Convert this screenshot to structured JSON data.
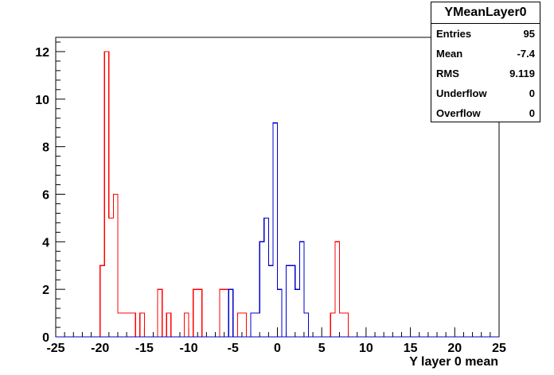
{
  "chart_data": {
    "type": "histogram",
    "title": "",
    "xlabel": "Y layer 0 mean",
    "ylabel": "",
    "xlim": [
      -25,
      25
    ],
    "ylim": [
      0,
      12.6
    ],
    "xticks": [
      "-25",
      "-20",
      "-15",
      "-10",
      "-5",
      "0",
      "5",
      "10",
      "15",
      "20",
      "25"
    ],
    "yticks": [
      "0",
      "2",
      "4",
      "6",
      "8",
      "10",
      "12"
    ],
    "bin_edges": [
      -25,
      -24.5,
      -24,
      -23.5,
      -23,
      -22.5,
      -22,
      -21.5,
      -21,
      -20.5,
      -20,
      -19.5,
      -19,
      -18.5,
      -18,
      -17.5,
      -17,
      -16.5,
      -16,
      -15.5,
      -15,
      -14.5,
      -14,
      -13.5,
      -13,
      -12.5,
      -12,
      -11.5,
      -11,
      -10.5,
      -10,
      -9.5,
      -9,
      -8.5,
      -8,
      -7.5,
      -7,
      -6.5,
      -6,
      -5.5,
      -5,
      -4.5,
      -4,
      -3.5,
      -3,
      -2.5,
      -2,
      -1.5,
      -1,
      -0.5,
      0,
      0.5,
      1,
      1.5,
      2,
      2.5,
      3,
      3.5,
      4,
      4.5,
      5,
      5.5,
      6,
      6.5,
      7,
      7.5,
      8,
      8.5,
      9,
      9.5,
      10,
      10.5,
      11,
      11.5,
      12,
      12.5,
      13,
      13.5,
      14,
      14.5,
      15,
      15.5,
      16,
      16.5,
      17,
      17.5,
      18,
      18.5,
      19,
      19.5,
      20,
      20.5,
      21,
      21.5,
      22,
      22.5,
      23,
      23.5,
      24,
      24.5,
      25
    ],
    "series": [
      {
        "color": "#ff0000",
        "values": [
          0,
          0,
          0,
          0,
          0,
          0,
          0,
          0,
          0,
          0,
          3,
          12,
          5,
          6,
          1,
          1,
          1,
          1,
          0,
          1,
          0,
          0,
          0,
          2,
          0,
          1,
          0,
          0,
          0,
          1,
          0,
          2,
          2,
          0,
          0,
          0,
          0,
          2,
          2,
          0,
          0,
          1,
          1,
          0,
          0,
          0,
          0,
          0,
          0,
          0,
          0,
          0,
          0,
          0,
          0,
          0,
          0,
          0,
          0,
          0,
          0,
          0,
          1,
          4,
          1,
          1,
          0,
          0,
          0,
          0,
          0,
          0,
          0,
          0,
          0,
          0,
          0,
          0,
          0,
          0,
          0,
          0,
          0,
          0,
          0,
          0,
          0,
          0,
          0,
          0,
          0,
          0,
          0,
          0,
          0,
          0,
          0,
          0,
          0,
          0
        ]
      },
      {
        "color": "#0000cc",
        "values": [
          0,
          0,
          0,
          0,
          0,
          0,
          0,
          0,
          0,
          0,
          0,
          0,
          0,
          0,
          0,
          0,
          0,
          0,
          0,
          0,
          0,
          0,
          0,
          0,
          0,
          0,
          0,
          0,
          0,
          0,
          0,
          0,
          0,
          0,
          0,
          0,
          0,
          0,
          0,
          2,
          0,
          0,
          0,
          0,
          1,
          1,
          4,
          5,
          3,
          9,
          2,
          0,
          3,
          3,
          2,
          4,
          1,
          0,
          0,
          0,
          0,
          0,
          0,
          0,
          0,
          0,
          0,
          0,
          0,
          0,
          0,
          0,
          0,
          0,
          0,
          0,
          0,
          0,
          0,
          0,
          0,
          0,
          0,
          0,
          0,
          0,
          0,
          0,
          0,
          0,
          0,
          0,
          0,
          0,
          0,
          0,
          0,
          0,
          0,
          0
        ]
      }
    ]
  },
  "stats": {
    "title": "YMeanLayer0",
    "rows": [
      {
        "label": "Entries",
        "value": "95"
      },
      {
        "label": "Mean",
        "value": "-7.4"
      },
      {
        "label": "RMS",
        "value": "9.119"
      },
      {
        "label": "Underflow",
        "value": "0"
      },
      {
        "label": "Overflow",
        "value": "0"
      }
    ]
  }
}
